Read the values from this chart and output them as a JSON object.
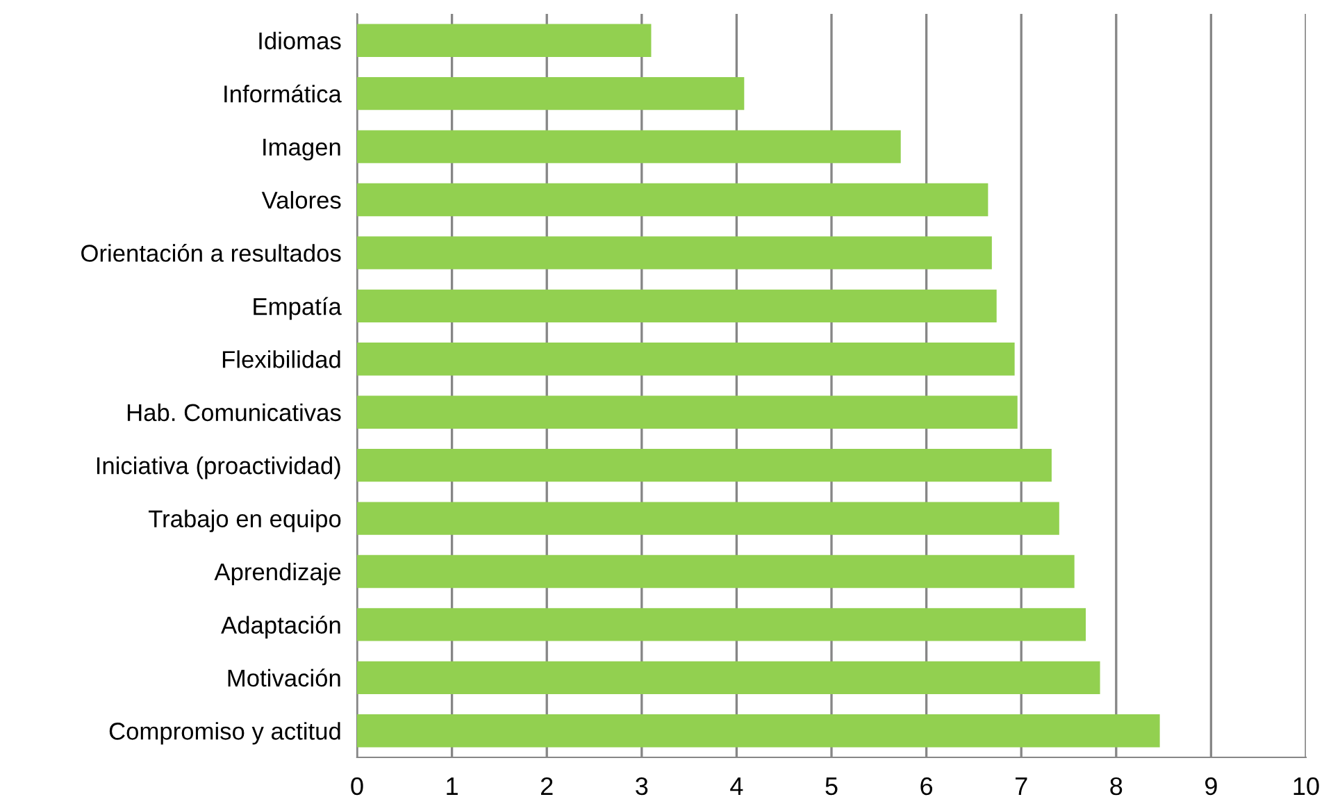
{
  "chart_data": {
    "type": "bar",
    "orientation": "horizontal",
    "categories": [
      "Idiomas",
      "Informática",
      "Imagen",
      "Valores",
      "Orientación a resultados",
      "Empatía",
      "Flexibilidad",
      "Hab. Comunicativas",
      "Iniciativa (proactividad)",
      "Trabajo en equipo",
      "Aprendizaje",
      "Adaptación",
      "Motivación",
      "Compromiso y actitud"
    ],
    "values": [
      3.1,
      4.08,
      5.73,
      6.65,
      6.69,
      6.74,
      6.93,
      6.96,
      7.32,
      7.4,
      7.56,
      7.68,
      7.83,
      8.46
    ],
    "color": "#92d050",
    "xlim": [
      0,
      10
    ],
    "xticks": [
      0,
      1,
      2,
      3,
      4,
      5,
      6,
      7,
      8,
      9,
      10
    ],
    "grid": "x"
  }
}
